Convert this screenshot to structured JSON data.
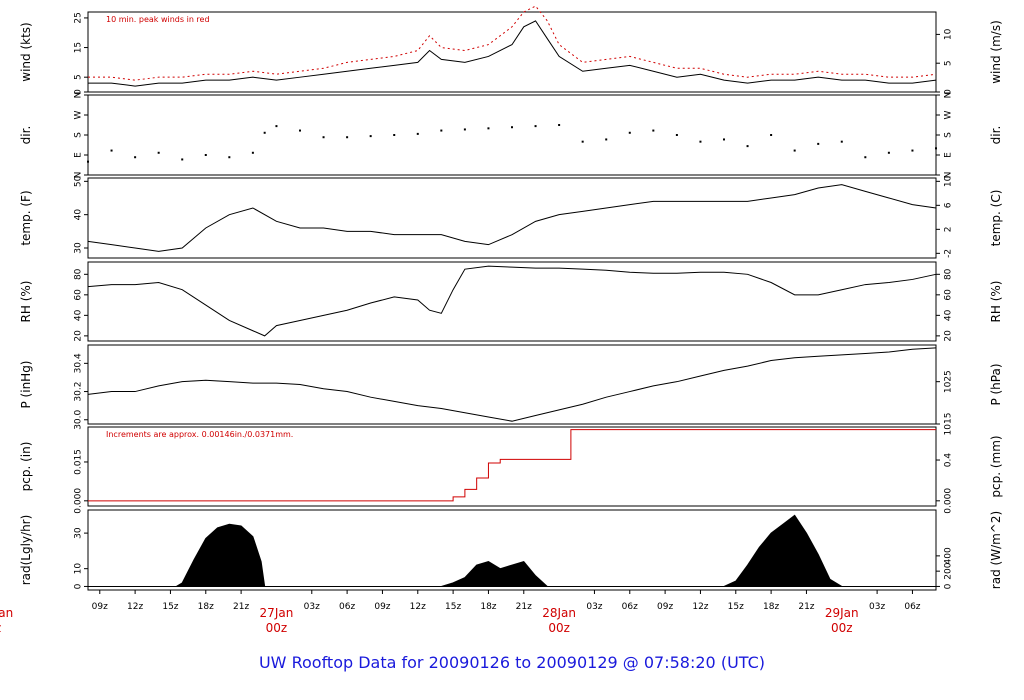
{
  "title": "UW Rooftop Data for 20090126  to  20090129 @ 07:58:20  (UTC)",
  "colors": {
    "series": "#000000",
    "accent": "#d00000",
    "title": "#1a1adc"
  },
  "chart_data": {
    "type": "line",
    "x_axis": {
      "hour_labels": [
        "09z",
        "12z",
        "15z",
        "18z",
        "21z",
        "03z",
        "06z",
        "09z",
        "12z",
        "15z",
        "18z",
        "21z",
        "03z",
        "06z",
        "09z",
        "12z",
        "15z",
        "18z",
        "21z",
        "03z",
        "06z"
      ],
      "day_labels": [
        {
          "date": "Jan",
          "time": "z"
        },
        {
          "date": "27Jan",
          "time": "00z"
        },
        {
          "date": "28Jan",
          "time": "00z"
        },
        {
          "date": "29Jan",
          "time": "00z"
        }
      ],
      "range_hours": [
        8,
        80
      ]
    },
    "panels": [
      {
        "id": "wind",
        "type": "line",
        "left_label": "wind (kts)",
        "right_label": "wind (m/s)",
        "left_ticks": [
          "0",
          "5",
          "15",
          "25"
        ],
        "right_ticks": [
          "0",
          "5",
          "10"
        ],
        "annotation": "10 min. peak winds in red",
        "series": [
          {
            "name": "wind",
            "x": [
              8,
              10,
              12,
              14,
              16,
              18,
              20,
              22,
              24,
              26,
              28,
              30,
              32,
              34,
              36,
              37,
              38,
              40,
              42,
              44,
              45,
              46,
              47,
              48,
              50,
              52,
              54,
              56,
              58,
              60,
              62,
              64,
              66,
              68,
              70,
              72,
              74,
              76,
              78,
              80
            ],
            "y": [
              3,
              3,
              2,
              3,
              3,
              4,
              4,
              5,
              4,
              5,
              6,
              7,
              8,
              9,
              10,
              14,
              11,
              10,
              12,
              16,
              22,
              24,
              18,
              12,
              7,
              8,
              9,
              7,
              5,
              6,
              4,
              3,
              4,
              4,
              5,
              4,
              4,
              3,
              3,
              4
            ]
          },
          {
            "name": "10 min. peak",
            "x": [
              8,
              10,
              12,
              14,
              16,
              18,
              20,
              22,
              24,
              26,
              28,
              30,
              32,
              34,
              36,
              37,
              38,
              40,
              42,
              44,
              45,
              46,
              47,
              48,
              50,
              52,
              54,
              56,
              58,
              60,
              62,
              64,
              66,
              68,
              70,
              72,
              74,
              76,
              78,
              80
            ],
            "y": [
              5,
              5,
              4,
              5,
              5,
              6,
              6,
              7,
              6,
              7,
              8,
              10,
              11,
              12,
              14,
              19,
              15,
              14,
              16,
              22,
              27,
              29,
              24,
              16,
              10,
              11,
              12,
              10,
              8,
              8,
              6,
              5,
              6,
              6,
              7,
              6,
              6,
              5,
              5,
              6
            ]
          }
        ]
      },
      {
        "id": "dir",
        "type": "scatter",
        "left_label": "dir.",
        "right_label": "dir.",
        "left_ticks": [
          "N",
          "E",
          "S",
          "W",
          "N"
        ],
        "right_ticks": [
          "N",
          "E",
          "S",
          "W",
          "N"
        ],
        "series": [
          {
            "name": "dir",
            "x": [
              8,
              10,
              12,
              14,
              16,
              18,
              20,
              22,
              23,
              24,
              26,
              28,
              30,
              32,
              34,
              36,
              38,
              40,
              42,
              44,
              46,
              48,
              50,
              52,
              54,
              56,
              58,
              60,
              62,
              64,
              66,
              68,
              70,
              72,
              74,
              76,
              78,
              80
            ],
            "y": [
              60,
              110,
              80,
              100,
              70,
              90,
              80,
              100,
              190,
              220,
              200,
              170,
              170,
              175,
              180,
              185,
              200,
              205,
              210,
              215,
              220,
              225,
              150,
              160,
              190,
              200,
              180,
              150,
              160,
              130,
              180,
              110,
              140,
              150,
              80,
              100,
              110,
              120
            ]
          }
        ]
      },
      {
        "id": "temp",
        "type": "line",
        "left_label": "temp. (F)",
        "right_label": "temp. (C)",
        "left_ticks": [
          "30",
          "40",
          "50"
        ],
        "right_ticks": [
          "-2",
          "2",
          "6",
          "10"
        ],
        "series": [
          {
            "name": "temp",
            "x": [
              8,
              10,
              12,
              14,
              16,
              18,
              20,
              22,
              24,
              26,
              28,
              30,
              32,
              34,
              36,
              38,
              40,
              42,
              44,
              46,
              48,
              50,
              52,
              54,
              56,
              58,
              60,
              62,
              64,
              66,
              68,
              70,
              72,
              74,
              76,
              78,
              80
            ],
            "y": [
              32,
              31,
              30,
              29,
              30,
              36,
              40,
              42,
              38,
              36,
              36,
              35,
              35,
              34,
              34,
              34,
              32,
              31,
              34,
              38,
              40,
              41,
              42,
              43,
              44,
              44,
              44,
              44,
              44,
              45,
              46,
              48,
              49,
              47,
              45,
              43,
              42
            ]
          }
        ]
      },
      {
        "id": "rh",
        "type": "line",
        "left_label": "RH (%)",
        "right_label": "RH (%)",
        "left_ticks": [
          "20",
          "40",
          "60",
          "80"
        ],
        "right_ticks": [
          "20",
          "40",
          "60",
          "80"
        ],
        "series": [
          {
            "name": "RH",
            "x": [
              8,
              10,
              12,
              14,
              16,
              18,
              20,
              22,
              23,
              24,
              26,
              28,
              30,
              32,
              34,
              36,
              37,
              38,
              39,
              40,
              42,
              44,
              46,
              48,
              50,
              52,
              54,
              56,
              58,
              60,
              62,
              64,
              66,
              68,
              70,
              72,
              74,
              76,
              78,
              80
            ],
            "y": [
              68,
              70,
              70,
              72,
              65,
              50,
              35,
              25,
              20,
              30,
              35,
              40,
              45,
              52,
              58,
              55,
              45,
              42,
              65,
              85,
              88,
              87,
              86,
              86,
              85,
              84,
              82,
              81,
              81,
              82,
              82,
              80,
              72,
              60,
              60,
              65,
              70,
              72,
              75,
              80
            ]
          }
        ]
      },
      {
        "id": "p",
        "type": "line",
        "left_label": "P (inHg)",
        "right_label": "P (hPa)",
        "left_ticks": [
          "30.0",
          "30.2",
          "30.4"
        ],
        "right_ticks": [
          "1015",
          "1025"
        ],
        "series": [
          {
            "name": "P",
            "x": [
              8,
              10,
              12,
              14,
              16,
              18,
              20,
              22,
              24,
              26,
              28,
              30,
              32,
              34,
              36,
              38,
              40,
              42,
              44,
              46,
              48,
              50,
              52,
              54,
              56,
              58,
              60,
              62,
              64,
              66,
              68,
              70,
              72,
              74,
              76,
              78,
              80
            ],
            "y": [
              30.18,
              30.2,
              30.2,
              30.24,
              30.27,
              30.28,
              30.27,
              30.26,
              30.26,
              30.25,
              30.22,
              30.2,
              30.16,
              30.13,
              30.1,
              30.08,
              30.05,
              30.02,
              29.99,
              30.03,
              30.07,
              30.11,
              30.16,
              30.2,
              30.24,
              30.27,
              30.31,
              30.35,
              30.38,
              30.42,
              30.44,
              30.45,
              30.46,
              30.47,
              30.48,
              30.5,
              30.51
            ]
          }
        ]
      },
      {
        "id": "pcp",
        "type": "line",
        "left_label": "pcp. (in)",
        "right_label": "pcp. (mm)",
        "left_ticks": [
          "0.000",
          "0.015"
        ],
        "right_ticks": [
          "0.000",
          "0.4"
        ],
        "annotation": "Increments are approx. 0.00146in./0.0371mm.",
        "series": [
          {
            "name": "pcp",
            "x": [
              8,
              38,
              39,
              40,
              41,
              42,
              43,
              48,
              49,
              80
            ],
            "y": [
              0,
              0,
              0.0015,
              0.0044,
              0.0088,
              0.0146,
              0.016,
              0.016,
              0.0275,
              0.0275
            ]
          }
        ]
      },
      {
        "id": "rad",
        "type": "area",
        "left_label": "rad(Lgly/hr)",
        "right_label": "rad (W/m^2)",
        "left_ticks": [
          "0",
          "10",
          "30"
        ],
        "right_ticks": [
          "0",
          "200",
          "400"
        ],
        "series": [
          {
            "name": "rad",
            "x": [
              8,
              15.5,
              16,
              17,
              18,
              19,
              20,
              21,
              22,
              22.7,
              23,
              38,
              39,
              40,
              41,
              42,
              43,
              44,
              45,
              46,
              47,
              62,
              63,
              64,
              65,
              66,
              67,
              68,
              69,
              70,
              71,
              72,
              80
            ],
            "y": [
              0,
              0,
              2,
              15,
              27,
              33,
              35,
              34,
              28,
              14,
              0,
              0,
              2,
              5,
              12,
              14,
              10,
              12,
              14,
              6,
              0,
              0,
              3,
              12,
              22,
              30,
              35,
              40,
              30,
              18,
              4,
              0,
              0
            ]
          }
        ]
      }
    ]
  }
}
